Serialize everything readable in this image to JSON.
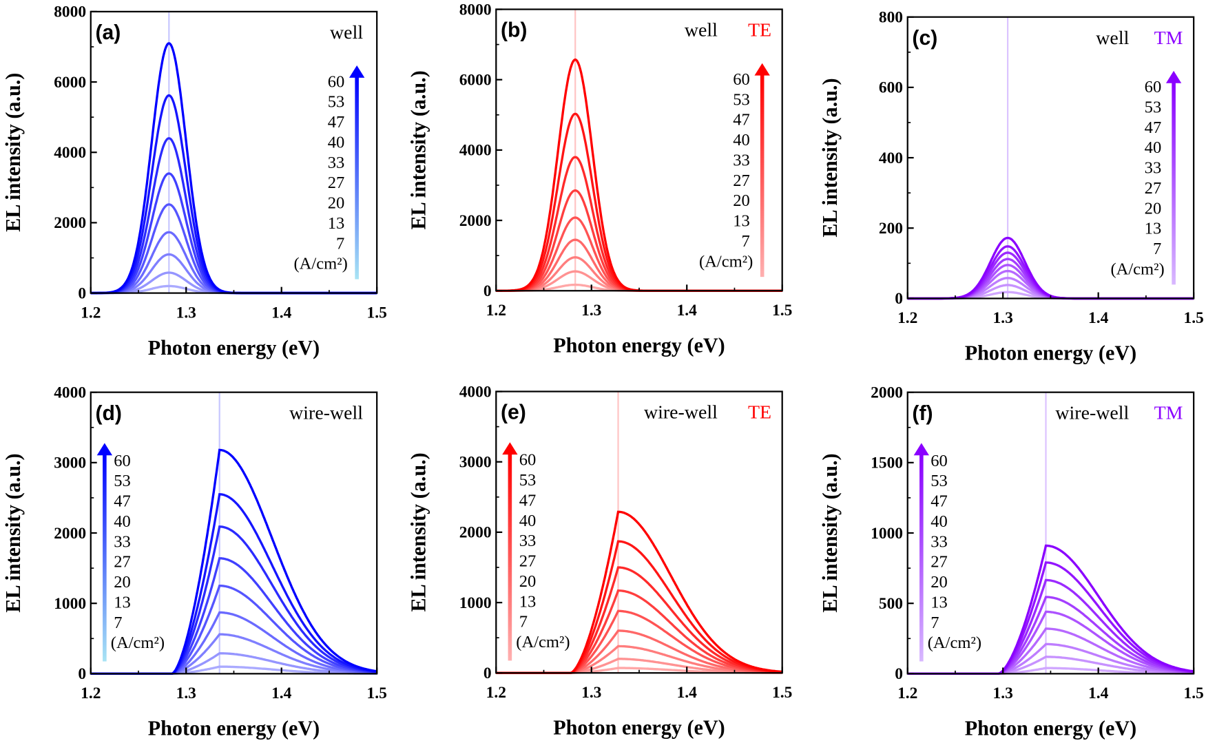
{
  "chart_data": [
    {
      "type": "line",
      "panel_label": "(a)",
      "annotation": "well",
      "mode": "",
      "color": "#0000ff",
      "light": "#c8c8ff",
      "arrow_light": "#a8e4f4",
      "xlabel": "Photon energy (eV)",
      "ylabel": "EL intensity (a.u.)",
      "xlim": [
        1.2,
        1.5
      ],
      "ylim": [
        0,
        8000
      ],
      "xticks": [
        "1.2",
        "1.3",
        "1.4",
        "1.5"
      ],
      "yticks": [
        "0",
        "2000",
        "4000",
        "6000",
        "8000"
      ],
      "peak_x": 1.282,
      "legend_title": "(A/cm²)",
      "legend_position": "right",
      "series": [
        {
          "name": "60",
          "peak": 7100
        },
        {
          "name": "53",
          "peak": 5620
        },
        {
          "name": "47",
          "peak": 4400
        },
        {
          "name": "40",
          "peak": 3400
        },
        {
          "name": "33",
          "peak": 2520
        },
        {
          "name": "27",
          "peak": 1730
        },
        {
          "name": "20",
          "peak": 1100
        },
        {
          "name": "13",
          "peak": 580
        },
        {
          "name": "7",
          "peak": 200
        }
      ]
    },
    {
      "type": "line",
      "panel_label": "(b)",
      "annotation": "well",
      "mode": "TE",
      "color": "#ff0000",
      "light": "#ffc4c4",
      "arrow_light": "#ffb0b0",
      "xlabel": "Photon energy (eV)",
      "ylabel": "EL intensity (a.u.)",
      "xlim": [
        1.2,
        1.5
      ],
      "ylim": [
        0,
        8000
      ],
      "xticks": [
        "1.2",
        "1.3",
        "1.4",
        "1.5"
      ],
      "yticks": [
        "0",
        "2000",
        "4000",
        "6000",
        "8000"
      ],
      "peak_x": 1.283,
      "legend_title": "(A/cm²)",
      "legend_position": "right",
      "series": [
        {
          "name": "60",
          "peak": 6570
        },
        {
          "name": "53",
          "peak": 5030
        },
        {
          "name": "47",
          "peak": 3800
        },
        {
          "name": "40",
          "peak": 2850
        },
        {
          "name": "33",
          "peak": 2080
        },
        {
          "name": "27",
          "peak": 1450
        },
        {
          "name": "20",
          "peak": 950
        },
        {
          "name": "13",
          "peak": 550
        },
        {
          "name": "7",
          "peak": 170
        }
      ]
    },
    {
      "type": "line",
      "panel_label": "(c)",
      "annotation": "well",
      "mode": "TM",
      "color": "#8a00ff",
      "light": "#dcc4ff",
      "arrow_light": "#d8b8ff",
      "xlabel": "Photon energy (eV)",
      "ylabel": "EL intensity (a.u.)",
      "xlim": [
        1.2,
        1.5
      ],
      "ylim": [
        0,
        800
      ],
      "xticks": [
        "1.2",
        "1.3",
        "1.4",
        "1.5"
      ],
      "yticks": [
        "0",
        "200",
        "400",
        "600",
        "800"
      ],
      "peak_x": 1.305,
      "legend_title": "(A/cm²)",
      "legend_position": "right",
      "series": [
        {
          "name": "60",
          "peak": 172
        },
        {
          "name": "53",
          "peak": 148
        },
        {
          "name": "47",
          "peak": 130
        },
        {
          "name": "40",
          "peak": 112
        },
        {
          "name": "33",
          "peak": 95
        },
        {
          "name": "27",
          "peak": 78
        },
        {
          "name": "20",
          "peak": 58
        },
        {
          "name": "13",
          "peak": 38
        },
        {
          "name": "7",
          "peak": 18
        }
      ]
    },
    {
      "type": "line",
      "panel_label": "(d)",
      "annotation": "wire-well",
      "mode": "",
      "color": "#0000ff",
      "light": "#c8c8ff",
      "arrow_light": "#a8e4f4",
      "xlabel": "Photon energy (eV)",
      "ylabel": "EL intensity (a.u.)",
      "xlim": [
        1.2,
        1.5
      ],
      "ylim": [
        0,
        4000
      ],
      "xticks": [
        "1.2",
        "1.3",
        "1.4",
        "1.5"
      ],
      "yticks": [
        "0",
        "1000",
        "2000",
        "3000",
        "4000"
      ],
      "peak_x": 1.335,
      "legend_title": "(A/cm²)",
      "legend_position": "left",
      "series": [
        {
          "name": "60",
          "peak": 3180
        },
        {
          "name": "53",
          "peak": 2550
        },
        {
          "name": "47",
          "peak": 2090
        },
        {
          "name": "40",
          "peak": 1640
        },
        {
          "name": "33",
          "peak": 1250
        },
        {
          "name": "27",
          "peak": 870
        },
        {
          "name": "20",
          "peak": 560
        },
        {
          "name": "13",
          "peak": 290
        },
        {
          "name": "7",
          "peak": 100
        }
      ]
    },
    {
      "type": "line",
      "panel_label": "(e)",
      "annotation": "wire-well",
      "mode": "TE",
      "color": "#ff0000",
      "light": "#ffc4c4",
      "arrow_light": "#ffb0b0",
      "xlabel": "Photon energy (eV)",
      "ylabel": "EL intensity (a.u.)",
      "xlim": [
        1.2,
        1.5
      ],
      "ylim": [
        0,
        4000
      ],
      "xticks": [
        "1.2",
        "1.3",
        "1.4",
        "1.5"
      ],
      "yticks": [
        "0",
        "1000",
        "2000",
        "3000",
        "4000"
      ],
      "peak_x": 1.328,
      "legend_title": "(A/cm²)",
      "legend_position": "left",
      "series": [
        {
          "name": "60",
          "peak": 2290
        },
        {
          "name": "53",
          "peak": 1870
        },
        {
          "name": "47",
          "peak": 1500
        },
        {
          "name": "40",
          "peak": 1170
        },
        {
          "name": "33",
          "peak": 880
        },
        {
          "name": "27",
          "peak": 600
        },
        {
          "name": "20",
          "peak": 380
        },
        {
          "name": "13",
          "peak": 200
        },
        {
          "name": "7",
          "peak": 70
        }
      ]
    },
    {
      "type": "line",
      "panel_label": "(f)",
      "annotation": "wire-well",
      "mode": "TM",
      "color": "#8a00ff",
      "light": "#dcc4ff",
      "arrow_light": "#d8b8ff",
      "xlabel": "Photon energy (eV)",
      "ylabel": "EL intensity (a.u.)",
      "xlim": [
        1.2,
        1.5
      ],
      "ylim": [
        0,
        2000
      ],
      "xticks": [
        "1.2",
        "1.3",
        "1.4",
        "1.5"
      ],
      "yticks": [
        "0",
        "500",
        "1000",
        "1500",
        "2000"
      ],
      "peak_x": 1.345,
      "legend_title": "(A/cm²)",
      "legend_position": "left",
      "series": [
        {
          "name": "60",
          "peak": 910
        },
        {
          "name": "53",
          "peak": 790
        },
        {
          "name": "47",
          "peak": 665
        },
        {
          "name": "40",
          "peak": 545
        },
        {
          "name": "33",
          "peak": 440
        },
        {
          "name": "27",
          "peak": 320
        },
        {
          "name": "20",
          "peak": 210
        },
        {
          "name": "13",
          "peak": 120
        },
        {
          "name": "7",
          "peak": 40
        }
      ]
    }
  ]
}
